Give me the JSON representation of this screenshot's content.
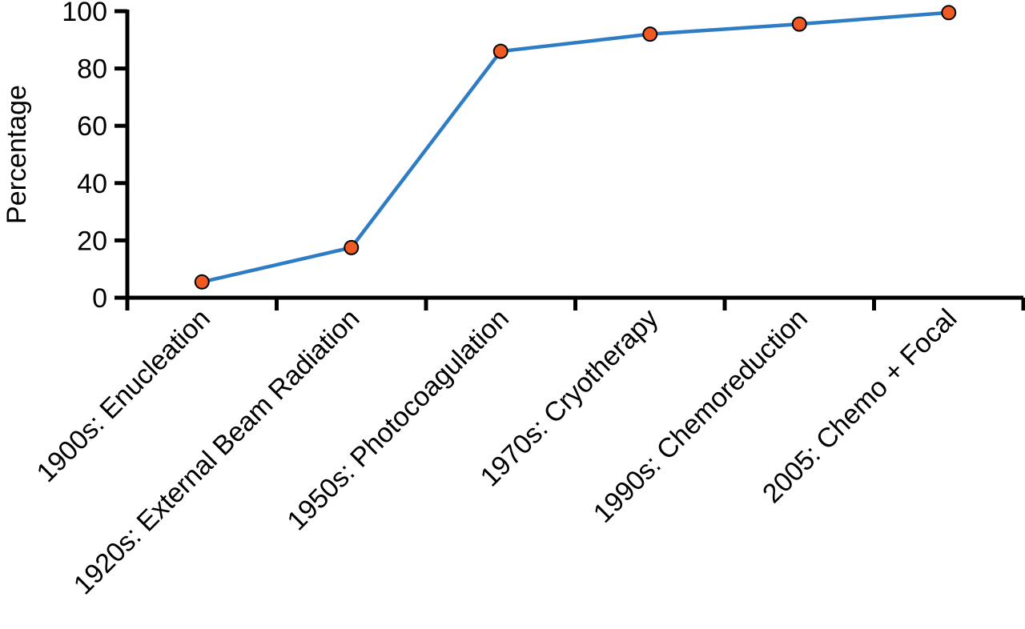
{
  "chart_data": {
    "type": "line",
    "title": "",
    "xlabel": "",
    "ylabel": "Percentage",
    "ylim": [
      0,
      100
    ],
    "yticks": [
      0,
      20,
      40,
      60,
      80,
      100
    ],
    "categories": [
      "1900s: Enucleation",
      "1920s: External Beam Radiation",
      "1950s: Photocoagulation",
      "1970s: Cryotherapy",
      "1990s: Chemoreduction",
      "2005: Chemo + Focal"
    ],
    "series": [
      {
        "values": [
          5.5,
          17.5,
          86,
          92,
          95.5,
          99.5
        ]
      }
    ],
    "grid": false,
    "colors": {
      "line": "#2e7cc4",
      "marker": "#ef5a24",
      "marker_edge": "#000000",
      "axis": "#000000"
    }
  }
}
